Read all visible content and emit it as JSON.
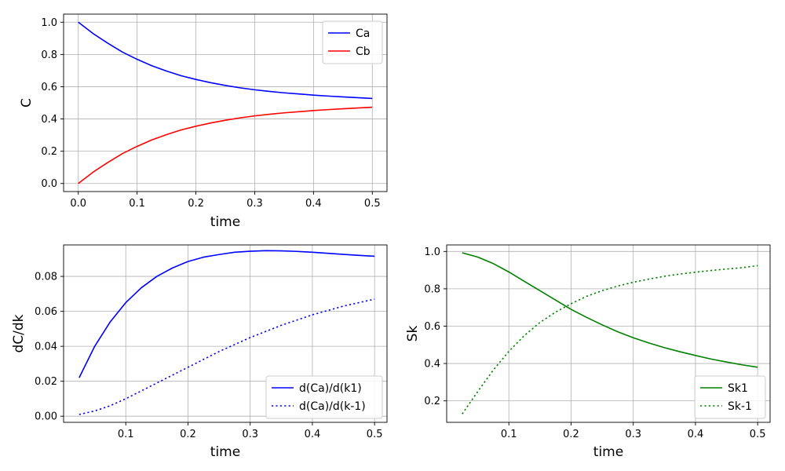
{
  "chart_data": [
    {
      "type": "line",
      "xlabel": "time",
      "ylabel": "C",
      "xlim": [
        -0.025,
        0.525
      ],
      "ylim": [
        -0.05,
        1.05
      ],
      "xticks": [
        0.0,
        0.1,
        0.2,
        0.3,
        0.4,
        0.5
      ],
      "xtick_labels": [
        "0.0",
        "0.1",
        "0.2",
        "0.3",
        "0.4",
        "0.5"
      ],
      "yticks": [
        0.0,
        0.2,
        0.4,
        0.6,
        0.8,
        1.0
      ],
      "ytick_labels": [
        "0.0",
        "0.2",
        "0.4",
        "0.6",
        "0.8",
        "1.0"
      ],
      "grid": true,
      "legend_position": "top-right",
      "x": [
        0.0,
        0.025,
        0.05,
        0.075,
        0.1,
        0.125,
        0.15,
        0.175,
        0.2,
        0.225,
        0.25,
        0.275,
        0.3,
        0.325,
        0.35,
        0.375,
        0.4,
        0.425,
        0.45,
        0.475,
        0.5
      ],
      "series": [
        {
          "name": "Ca",
          "color": "#0000ff",
          "style": "solid",
          "values": [
            1.0,
            0.93,
            0.87,
            0.815,
            0.77,
            0.73,
            0.697,
            0.668,
            0.645,
            0.625,
            0.608,
            0.593,
            0.581,
            0.571,
            0.562,
            0.555,
            0.548,
            0.542,
            0.537,
            0.532,
            0.527
          ]
        },
        {
          "name": "Cb",
          "color": "#ff0000",
          "style": "solid",
          "values": [
            0.0,
            0.07,
            0.13,
            0.185,
            0.23,
            0.27,
            0.303,
            0.332,
            0.355,
            0.375,
            0.392,
            0.407,
            0.419,
            0.429,
            0.438,
            0.445,
            0.452,
            0.458,
            0.463,
            0.468,
            0.473
          ]
        }
      ]
    },
    {
      "type": "line",
      "xlabel": "time",
      "ylabel": "dC/dk",
      "xlim": [
        -0.0,
        0.52
      ],
      "ylim": [
        -0.0035,
        0.098
      ],
      "xticks": [
        0.1,
        0.2,
        0.3,
        0.4,
        0.5
      ],
      "xtick_labels": [
        "0.1",
        "0.2",
        "0.3",
        "0.4",
        "0.5"
      ],
      "yticks": [
        0.0,
        0.02,
        0.04,
        0.06,
        0.08
      ],
      "ytick_labels": [
        "0.00",
        "0.02",
        "0.04",
        "0.06",
        "0.08"
      ],
      "grid": true,
      "legend_position": "bottom-right",
      "x": [
        0.025,
        0.05,
        0.075,
        0.1,
        0.125,
        0.15,
        0.175,
        0.2,
        0.225,
        0.25,
        0.275,
        0.3,
        0.325,
        0.35,
        0.375,
        0.4,
        0.425,
        0.45,
        0.475,
        0.5
      ],
      "series": [
        {
          "name": "d(Ca)/d(k1)",
          "color": "#0000ff",
          "style": "solid",
          "values": [
            0.022,
            0.04,
            0.054,
            0.065,
            0.0735,
            0.08,
            0.0848,
            0.0885,
            0.091,
            0.0925,
            0.0938,
            0.0944,
            0.0947,
            0.0946,
            0.0943,
            0.0938,
            0.0932,
            0.0926,
            0.092,
            0.0915
          ]
        },
        {
          "name": "d(Ca)/d(k-1)",
          "color": "#0000ff",
          "style": "dotted",
          "values": [
            0.001,
            0.003,
            0.006,
            0.01,
            0.0145,
            0.019,
            0.0235,
            0.028,
            0.0325,
            0.037,
            0.041,
            0.045,
            0.0485,
            0.052,
            0.055,
            0.058,
            0.0605,
            0.063,
            0.065,
            0.067
          ]
        }
      ]
    },
    {
      "type": "line",
      "xlabel": "time",
      "ylabel": "Sk",
      "xlim": [
        0.0,
        0.52
      ],
      "ylim": [
        0.085,
        1.035
      ],
      "xticks": [
        0.1,
        0.2,
        0.3,
        0.4,
        0.5
      ],
      "xtick_labels": [
        "0.1",
        "0.2",
        "0.3",
        "0.4",
        "0.5"
      ],
      "yticks": [
        0.2,
        0.4,
        0.6,
        0.8,
        1.0
      ],
      "ytick_labels": [
        "0.2",
        "0.4",
        "0.6",
        "0.8",
        "1.0"
      ],
      "grid": true,
      "legend_position": "bottom-right",
      "x": [
        0.025,
        0.05,
        0.075,
        0.1,
        0.125,
        0.15,
        0.175,
        0.2,
        0.225,
        0.25,
        0.275,
        0.3,
        0.325,
        0.35,
        0.375,
        0.4,
        0.425,
        0.45,
        0.475,
        0.5
      ],
      "series": [
        {
          "name": "Sk1",
          "color": "#008000",
          "style": "solid",
          "values": [
            0.993,
            0.97,
            0.935,
            0.89,
            0.84,
            0.79,
            0.74,
            0.69,
            0.647,
            0.607,
            0.57,
            0.538,
            0.51,
            0.485,
            0.463,
            0.443,
            0.424,
            0.408,
            0.393,
            0.38
          ]
        },
        {
          "name": "Sk-1",
          "color": "#008000",
          "style": "dotted",
          "values": [
            0.13,
            0.25,
            0.365,
            0.465,
            0.55,
            0.62,
            0.675,
            0.72,
            0.76,
            0.79,
            0.815,
            0.835,
            0.852,
            0.867,
            0.879,
            0.889,
            0.898,
            0.906,
            0.913,
            0.924
          ]
        }
      ]
    }
  ]
}
